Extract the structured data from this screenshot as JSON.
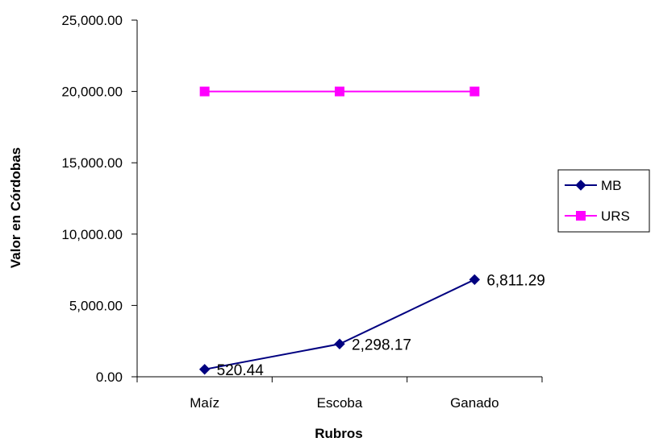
{
  "chart_data": {
    "type": "line",
    "title": "",
    "xlabel": "Rubros",
    "ylabel": "Valor en Córdobas",
    "categories": [
      "Maíz",
      "Escoba",
      "Ganado"
    ],
    "ylim": [
      0,
      25000
    ],
    "yticks": [
      0,
      5000,
      10000,
      15000,
      20000,
      25000
    ],
    "ytick_labels": [
      "0.00",
      "5,000.00",
      "10,000.00",
      "15,000.00",
      "20,000.00",
      "25,000.00"
    ],
    "grid": false,
    "legend_position": "right",
    "series": [
      {
        "name": "MB",
        "values": [
          520.44,
          2298.17,
          6811.29
        ],
        "data_labels": [
          "520.44",
          "2,298.17",
          "6,811.29"
        ],
        "color": "#000080",
        "marker": "diamond"
      },
      {
        "name": "URS",
        "values": [
          20000,
          20000,
          20000
        ],
        "color": "#FF00FF",
        "marker": "square"
      }
    ]
  }
}
